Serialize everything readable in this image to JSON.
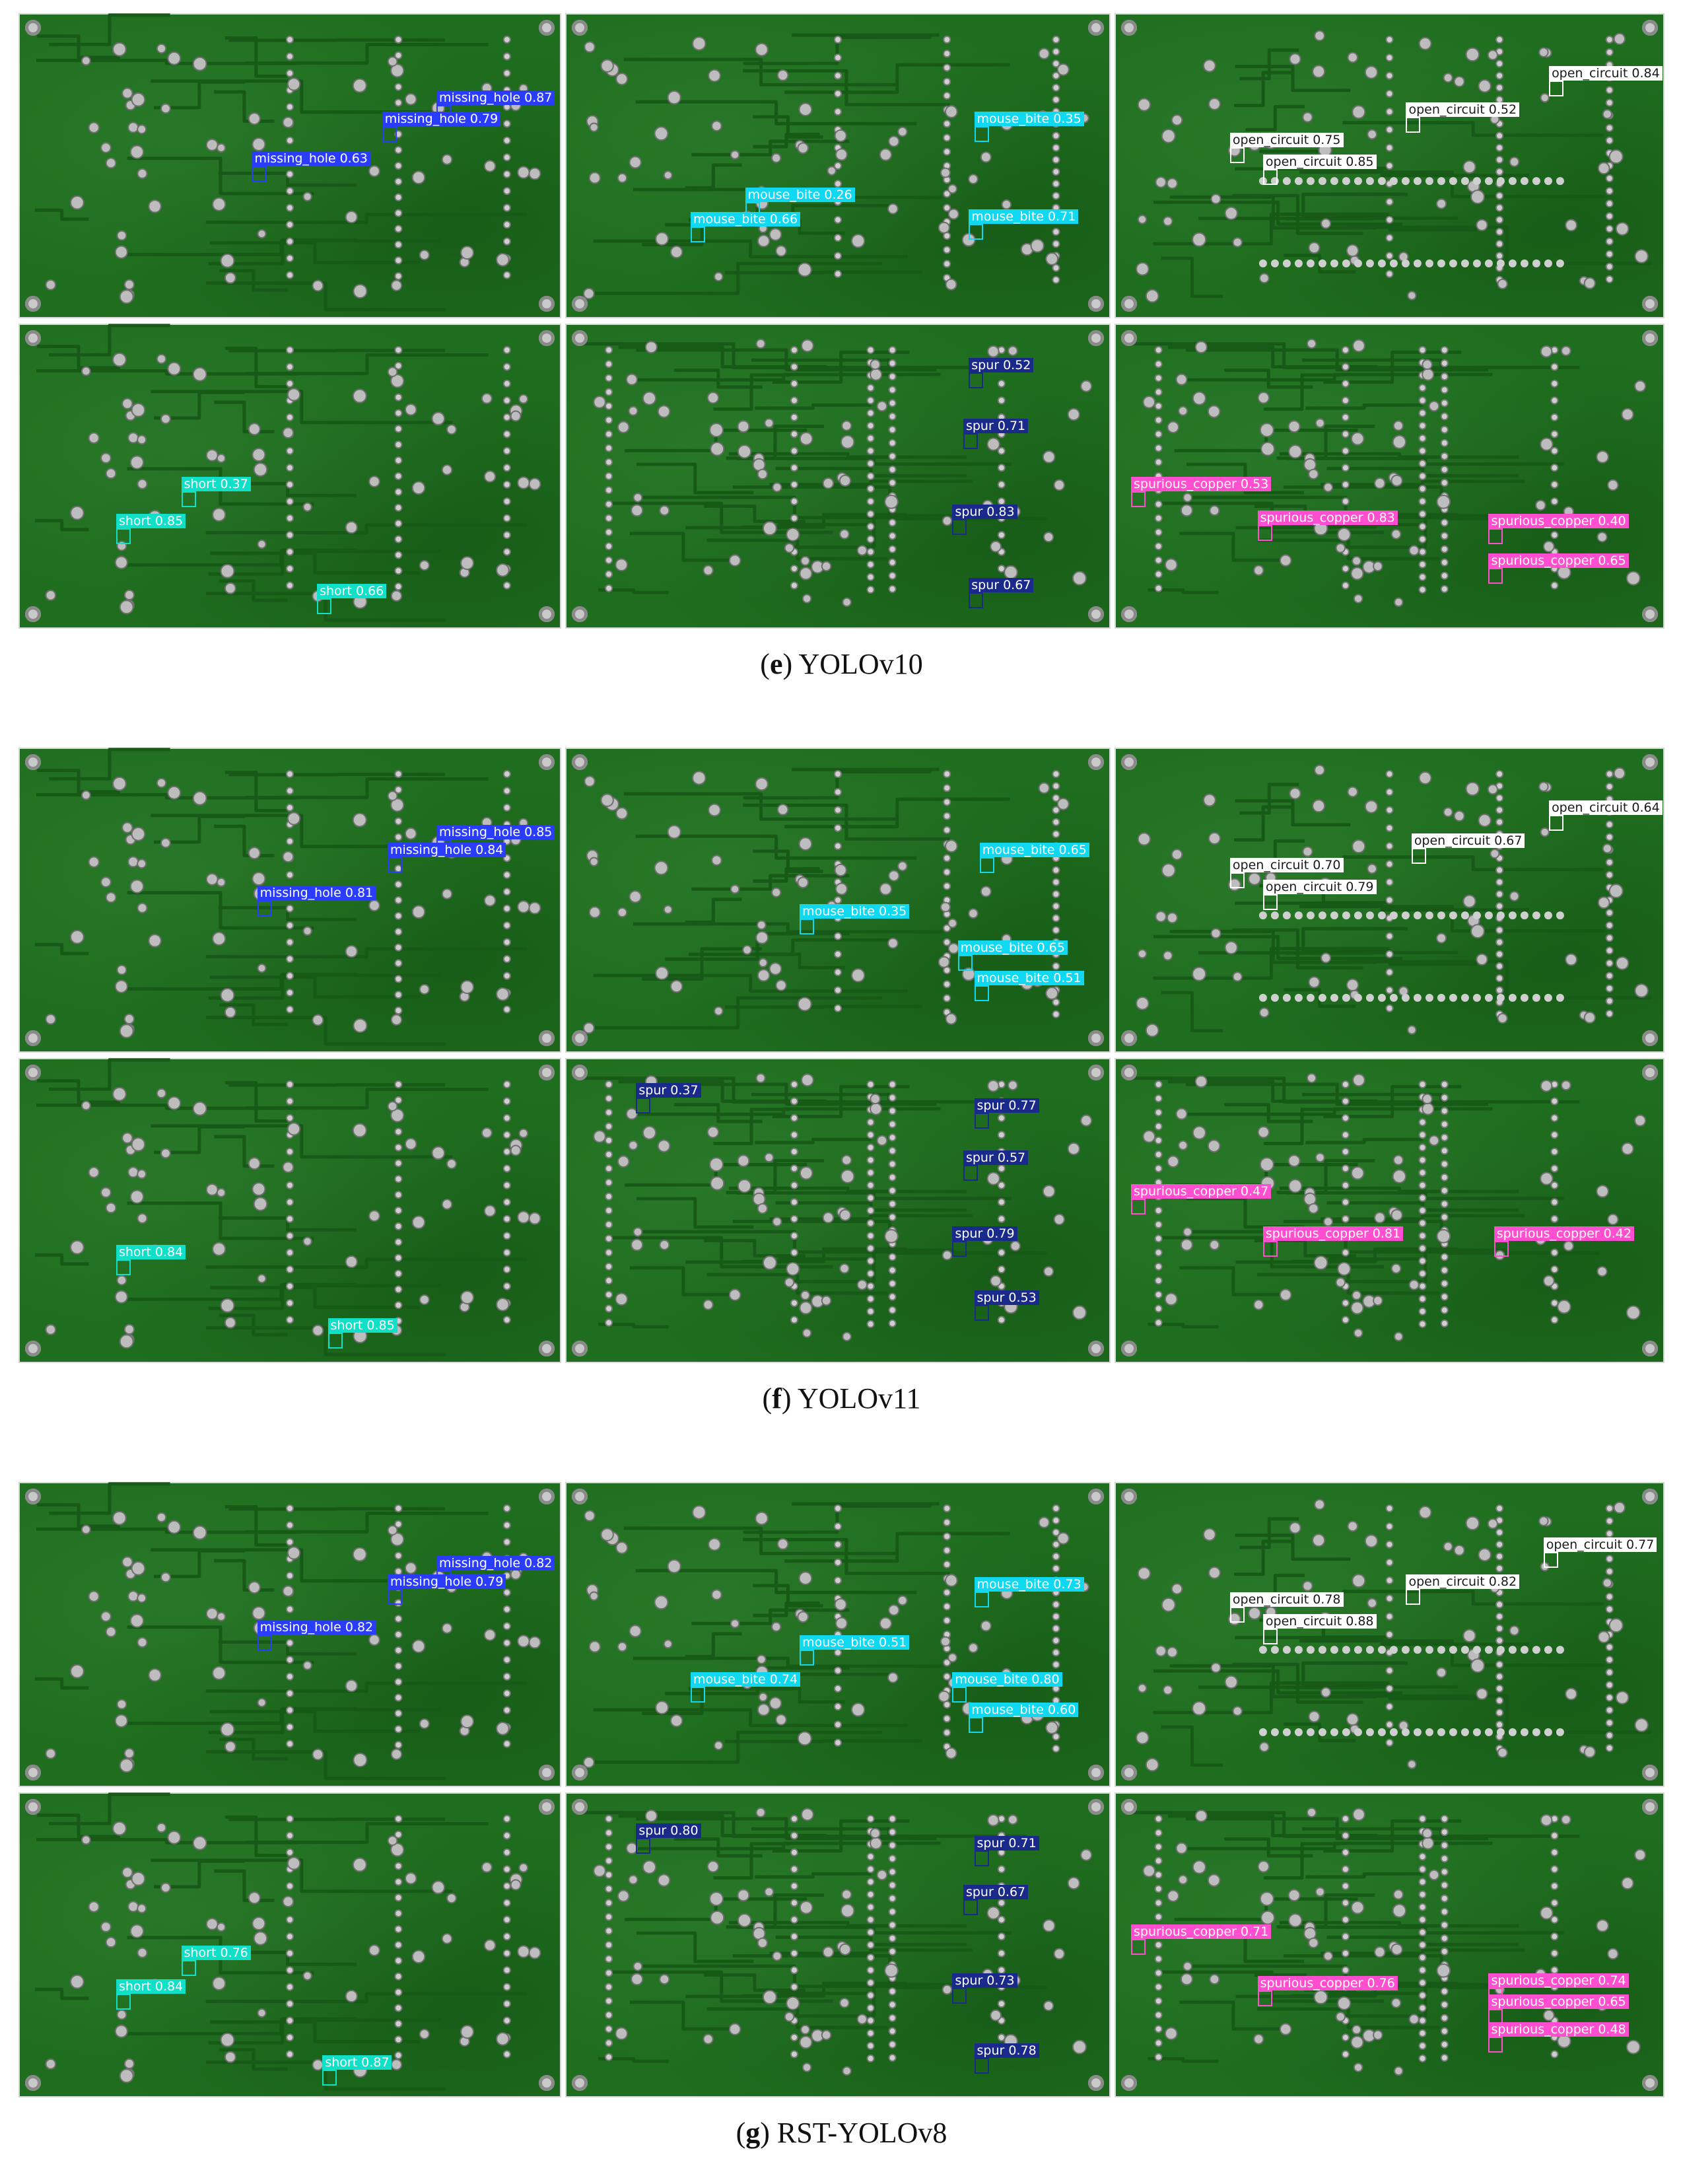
{
  "colors": {
    "board": "#1f6e1f",
    "missing_hole": "#2a3dff",
    "mouse_bite": "#10d8f0",
    "open_circuit": "#ffffff",
    "short": "#10e0c8",
    "spur": "#1a2a8a",
    "spurious_copper": "#ff4fd0"
  },
  "figures": [
    {
      "caption": {
        "letter": "e",
        "model": "YOLOv10"
      },
      "panels": [
        {
          "type": "A",
          "detections": [
            {
              "cls": "missing_hole",
              "label": "missing_hole 0.87"
            },
            {
              "cls": "missing_hole",
              "label": "missing_hole 0.79"
            },
            {
              "cls": "missing_hole",
              "label": "missing_hole 0.63"
            }
          ]
        },
        {
          "type": "B",
          "detections": [
            {
              "cls": "mouse_bite",
              "label": "mouse_bite 0.35"
            },
            {
              "cls": "mouse_bite",
              "label": "mouse_bite 0.26"
            },
            {
              "cls": "mouse_bite",
              "label": "mouse_bite 0.66"
            },
            {
              "cls": "mouse_bite",
              "label": "mouse_bite 0.71"
            }
          ]
        },
        {
          "type": "C",
          "detections": [
            {
              "cls": "open_circuit",
              "label": "open_circuit 0.84"
            },
            {
              "cls": "open_circuit",
              "label": "open_circuit 0.52"
            },
            {
              "cls": "open_circuit",
              "label": "open_circuit 0.75"
            },
            {
              "cls": "open_circuit",
              "label": "open_circuit 0.85"
            }
          ]
        },
        {
          "type": "A",
          "detections": [
            {
              "cls": "short",
              "label": "short 0.37"
            },
            {
              "cls": "short",
              "label": "short 0.85"
            },
            {
              "cls": "short",
              "label": "short 0.66"
            }
          ]
        },
        {
          "type": "D",
          "detections": [
            {
              "cls": "spur",
              "label": "spur 0.52"
            },
            {
              "cls": "spur",
              "label": "spur 0.71"
            },
            {
              "cls": "spur",
              "label": "spur 0.83"
            },
            {
              "cls": "spur",
              "label": "spur 0.67"
            }
          ]
        },
        {
          "type": "D",
          "detections": [
            {
              "cls": "spurious_copper",
              "label": "spurious_copper 0.53"
            },
            {
              "cls": "spurious_copper",
              "label": "spurious_copper 0.83"
            },
            {
              "cls": "spurious_copper",
              "label": "spurious_copper 0.40"
            },
            {
              "cls": "spurious_copper",
              "label": "spurious_copper 0.65"
            }
          ]
        }
      ]
    },
    {
      "caption": {
        "letter": "f",
        "model": "YOLOv11"
      },
      "panels": [
        {
          "type": "A",
          "detections": [
            {
              "cls": "missing_hole",
              "label": "missing_hole 0.85"
            },
            {
              "cls": "missing_hole",
              "label": "missing_hole 0.84"
            },
            {
              "cls": "missing_hole",
              "label": "missing_hole 0.81"
            }
          ]
        },
        {
          "type": "B",
          "detections": [
            {
              "cls": "mouse_bite",
              "label": "mouse_bite 0.65"
            },
            {
              "cls": "mouse_bite",
              "label": "mouse_bite 0.35"
            },
            {
              "cls": "mouse_bite",
              "label": "mouse_bite 0.65"
            },
            {
              "cls": "mouse_bite",
              "label": "mouse_bite 0.51"
            }
          ]
        },
        {
          "type": "C",
          "detections": [
            {
              "cls": "open_circuit",
              "label": "open_circuit 0.64"
            },
            {
              "cls": "open_circuit",
              "label": "open_circuit 0.67"
            },
            {
              "cls": "open_circuit",
              "label": "open_circuit 0.70"
            },
            {
              "cls": "open_circuit",
              "label": "open_circuit 0.79"
            }
          ]
        },
        {
          "type": "A",
          "detections": [
            {
              "cls": "short",
              "label": "short 0.84"
            },
            {
              "cls": "short",
              "label": "short 0.85"
            }
          ]
        },
        {
          "type": "D",
          "detections": [
            {
              "cls": "spur",
              "label": "spur 0.37"
            },
            {
              "cls": "spur",
              "label": "spur 0.77"
            },
            {
              "cls": "spur",
              "label": "spur 0.57"
            },
            {
              "cls": "spur",
              "label": "spur 0.79"
            },
            {
              "cls": "spur",
              "label": "spur 0.53"
            }
          ]
        },
        {
          "type": "D",
          "detections": [
            {
              "cls": "spurious_copper",
              "label": "spurious_copper 0.47"
            },
            {
              "cls": "spurious_copper",
              "label": "spurious_copper 0.81"
            },
            {
              "cls": "spurious_copper",
              "label": "spurious_copper 0.42"
            }
          ]
        }
      ]
    },
    {
      "caption": {
        "letter": "g",
        "model": "RST-YOLOv8"
      },
      "panels": [
        {
          "type": "A",
          "detections": [
            {
              "cls": "missing_hole",
              "label": "missing_hole 0.82"
            },
            {
              "cls": "missing_hole",
              "label": "missing_hole 0.79"
            },
            {
              "cls": "missing_hole",
              "label": "missing_hole 0.82"
            }
          ]
        },
        {
          "type": "B",
          "detections": [
            {
              "cls": "mouse_bite",
              "label": "mouse_bite 0.73"
            },
            {
              "cls": "mouse_bite",
              "label": "mouse_bite 0.51"
            },
            {
              "cls": "mouse_bite",
              "label": "mouse_bite 0.74"
            },
            {
              "cls": "mouse_bite",
              "label": "mouse_bite 0.80"
            },
            {
              "cls": "mouse_bite",
              "label": "mouse_bite 0.60"
            }
          ]
        },
        {
          "type": "C",
          "detections": [
            {
              "cls": "open_circuit",
              "label": "open_circuit 0.77"
            },
            {
              "cls": "open_circuit",
              "label": "open_circuit 0.82"
            },
            {
              "cls": "open_circuit",
              "label": "open_circuit 0.78"
            },
            {
              "cls": "open_circuit",
              "label": "open_circuit 0.88"
            }
          ]
        },
        {
          "type": "A",
          "detections": [
            {
              "cls": "short",
              "label": "short 0.76"
            },
            {
              "cls": "short",
              "label": "short 0.84"
            },
            {
              "cls": "short",
              "label": "short 0.87"
            }
          ]
        },
        {
          "type": "D",
          "detections": [
            {
              "cls": "spur",
              "label": "spur 0.80"
            },
            {
              "cls": "spur",
              "label": "spur 0.71"
            },
            {
              "cls": "spur",
              "label": "spur 0.67"
            },
            {
              "cls": "spur",
              "label": "spur 0.73"
            },
            {
              "cls": "spur",
              "label": "spur 0.78"
            }
          ]
        },
        {
          "type": "D",
          "detections": [
            {
              "cls": "spurious_copper",
              "label": "spurious_copper 0.71"
            },
            {
              "cls": "spurious_copper",
              "label": "spurious_copper 0.76"
            },
            {
              "cls": "spurious_copper",
              "label": "spurious_copper 0.74"
            },
            {
              "cls": "spurious_copper",
              "label": "spurious_copper 0.65"
            },
            {
              "cls": "spurious_copper",
              "label": "spurious_copper 0.48"
            }
          ]
        }
      ]
    }
  ]
}
